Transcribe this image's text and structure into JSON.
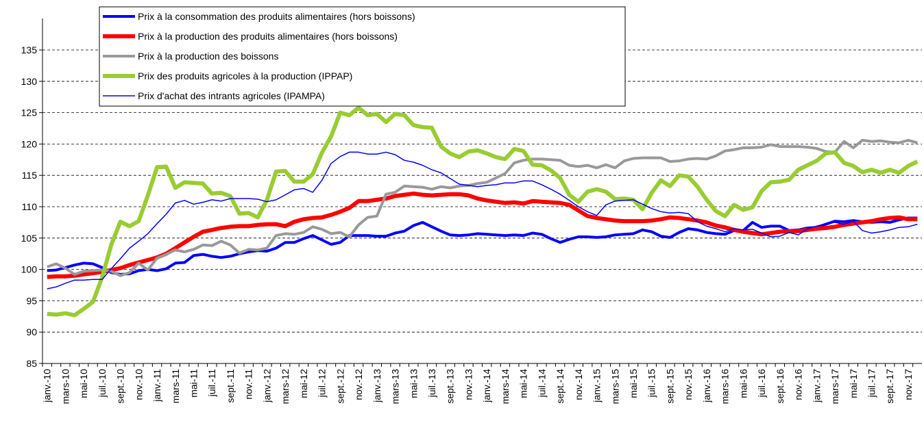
{
  "chart_data": {
    "type": "line",
    "categories": [
      "janv.-10",
      null,
      "mars-10",
      null,
      "mai-10",
      null,
      "juil.-10",
      null,
      "sept.-10",
      null,
      "nov.-10",
      null,
      "janv.-11",
      null,
      "mars-11",
      null,
      "mai-11",
      null,
      "juil.-11",
      null,
      "sept.-11",
      null,
      "nov.-11",
      null,
      "janv.-12",
      null,
      "mars-12",
      null,
      "mai-12",
      null,
      "juil.-12",
      null,
      "sept.-12",
      null,
      "nov.-12",
      null,
      "janv.-13",
      null,
      "mars-13",
      null,
      "mai-13",
      null,
      "juil.-13",
      null,
      "sept.-13",
      null,
      "nov.-13",
      null,
      "janv.-14",
      null,
      "mars-14",
      null,
      "mai-14",
      null,
      "juil.-14",
      null,
      "sept.-14",
      null,
      "nov.-14",
      null,
      "janv.-15",
      null,
      "mars-15",
      null,
      "mai-15",
      null,
      "juil.-15",
      null,
      "sept.-15",
      null,
      "nov.-15",
      null,
      "janv.-16",
      null,
      "mars-16",
      null,
      "mai-16",
      null,
      "juil.-16",
      null,
      "sept.-16",
      null,
      "nov.-16",
      null,
      "janv.-17",
      null,
      "mars-17",
      null,
      "mai-17",
      null,
      "juil.-17",
      null,
      "sept.-17",
      null,
      "nov.-17",
      null
    ],
    "series": [
      {
        "name": "Prix à la consommation des produits alimentaires (hors boissons)",
        "color": "#0000ff",
        "width": 4,
        "values": [
          99.8,
          99.9,
          100.3,
          100.7,
          101.0,
          100.9,
          100.3,
          99.5,
          99.2,
          99.3,
          99.8,
          100.0,
          99.8,
          100.1,
          101.0,
          101.1,
          102.2,
          102.4,
          102.1,
          101.9,
          102.1,
          102.5,
          102.8,
          103.0,
          102.9,
          103.4,
          104.3,
          104.3,
          104.9,
          105.4,
          104.7,
          104.0,
          104.3,
          105.4,
          105.4,
          105.4,
          105.3,
          105.3,
          105.8,
          106.1,
          107.0,
          107.5,
          106.8,
          106.1,
          105.5,
          105.4,
          105.5,
          105.7,
          105.6,
          105.5,
          105.4,
          105.5,
          105.4,
          105.8,
          105.6,
          104.9,
          104.3,
          104.8,
          105.2,
          105.2,
          105.1,
          105.2,
          105.5,
          105.6,
          105.7,
          106.3,
          106.0,
          105.3,
          105.1,
          105.9,
          106.5,
          106.3,
          105.9,
          105.7,
          105.6,
          106.2,
          106.2,
          107.5,
          106.7,
          106.9,
          106.9,
          106.2,
          106.3,
          106.6,
          106.7,
          107.2,
          107.7,
          107.6,
          107.8,
          107.6,
          107.5,
          107.6,
          107.5,
          107.9,
          108.2,
          108.2
        ]
      },
      {
        "name": "Prix à la production des produits alimentaires (hors boissons)",
        "color": "#ff0000",
        "width": 6,
        "values": [
          98.8,
          98.9,
          98.9,
          99.0,
          99.2,
          99.4,
          99.6,
          99.9,
          100.2,
          100.7,
          101.1,
          101.5,
          101.9,
          102.5,
          103.4,
          104.3,
          105.2,
          106.0,
          106.3,
          106.6,
          106.8,
          106.9,
          106.9,
          107.1,
          107.2,
          107.2,
          106.9,
          107.6,
          108.0,
          108.2,
          108.3,
          108.7,
          109.2,
          109.8,
          110.9,
          110.9,
          111.1,
          111.3,
          111.7,
          111.9,
          112.1,
          111.9,
          111.8,
          111.9,
          112.0,
          112.0,
          111.8,
          111.3,
          111.0,
          110.8,
          110.6,
          110.7,
          110.5,
          110.9,
          110.8,
          110.7,
          110.6,
          110.3,
          109.4,
          108.5,
          108.2,
          108.0,
          107.8,
          107.7,
          107.7,
          107.7,
          107.8,
          108.0,
          108.3,
          108.2,
          108.0,
          107.8,
          107.5,
          107.0,
          106.7,
          106.3,
          106.0,
          105.8,
          105.6,
          105.8,
          106.0,
          106.1,
          106.1,
          106.3,
          106.5,
          106.6,
          106.8,
          107.1,
          107.3,
          107.5,
          107.7,
          108.0,
          108.2,
          108.3,
          108.0,
          108.0
        ]
      },
      {
        "name": "Prix à la production des boissons",
        "color": "#999999",
        "width": 4,
        "values": [
          100.4,
          100.9,
          100.2,
          99.2,
          99.7,
          99.8,
          99.9,
          99.7,
          99.0,
          99.5,
          101.0,
          99.9,
          101.8,
          102.4,
          103.1,
          102.8,
          103.2,
          103.9,
          103.8,
          104.5,
          103.9,
          102.6,
          103.2,
          103.1,
          103.4,
          105.4,
          105.7,
          105.6,
          105.9,
          106.8,
          106.4,
          105.7,
          105.9,
          105.2,
          107.1,
          108.3,
          108.5,
          112.0,
          112.3,
          113.3,
          113.2,
          113.1,
          112.8,
          113.2,
          113.0,
          113.3,
          113.4,
          113.7,
          113.9,
          114.6,
          115.3,
          117.0,
          117.4,
          117.6,
          117.6,
          117.5,
          117.4,
          116.6,
          116.4,
          116.6,
          116.2,
          116.7,
          116.2,
          117.3,
          117.7,
          117.8,
          117.8,
          117.8,
          117.2,
          117.3,
          117.6,
          117.7,
          117.6,
          118.1,
          118.9,
          119.1,
          119.4,
          119.4,
          119.5,
          119.9,
          119.6,
          119.6,
          119.6,
          119.5,
          119.3,
          118.8,
          118.7,
          120.4,
          119.4,
          120.6,
          120.4,
          120.5,
          120.3,
          120.2,
          120.6,
          120.2
        ]
      },
      {
        "name": "Prix des produits agricoles à la production (IPPAP)",
        "color": "#99cc33",
        "width": 6,
        "values": [
          92.9,
          92.8,
          93.0,
          92.7,
          93.7,
          94.8,
          98.7,
          103.9,
          107.6,
          106.9,
          107.7,
          111.8,
          116.3,
          116.4,
          113.0,
          113.9,
          113.8,
          113.7,
          112.1,
          112.2,
          111.7,
          108.9,
          109.0,
          108.3,
          111.1,
          115.6,
          115.7,
          114.0,
          114.0,
          115.2,
          118.6,
          121.2,
          125.0,
          124.6,
          125.8,
          124.6,
          124.8,
          123.5,
          124.8,
          124.6,
          123.0,
          122.7,
          122.6,
          119.6,
          118.5,
          117.9,
          118.8,
          119.0,
          118.5,
          117.9,
          117.6,
          119.2,
          118.9,
          116.7,
          116.6,
          115.8,
          114.6,
          111.9,
          110.8,
          112.4,
          112.8,
          112.4,
          111.2,
          111.3,
          111.1,
          109.6,
          112.2,
          114.2,
          113.3,
          115.0,
          114.8,
          113.2,
          111.1,
          109.3,
          108.5,
          110.3,
          109.5,
          109.9,
          112.5,
          113.9,
          114.0,
          114.3,
          115.9,
          116.6,
          117.3,
          118.5,
          118.7,
          117.0,
          116.5,
          115.5,
          115.9,
          115.4,
          115.9,
          115.4,
          116.5,
          117.2
        ]
      },
      {
        "name": "Prix d'achat des intrants agricoles (IPAMPA)",
        "color": "#0000ff",
        "width": 1.5,
        "values": [
          96.9,
          97.2,
          97.8,
          98.3,
          98.3,
          98.4,
          98.4,
          100.1,
          101.7,
          103.4,
          104.5,
          105.7,
          107.3,
          108.8,
          110.6,
          111.0,
          110.4,
          110.7,
          111.1,
          110.9,
          111.3,
          111.3,
          111.3,
          111.2,
          110.8,
          111.1,
          111.9,
          112.7,
          112.9,
          112.3,
          114.2,
          116.9,
          118.0,
          118.7,
          118.7,
          118.4,
          118.4,
          118.7,
          118.3,
          117.4,
          117.1,
          116.6,
          115.9,
          115.4,
          114.5,
          113.6,
          113.4,
          113.2,
          113.4,
          113.5,
          113.8,
          113.8,
          114.1,
          114.1,
          113.5,
          112.8,
          112.0,
          111.0,
          110.0,
          109.2,
          108.6,
          110.3,
          110.9,
          111.0,
          111.1,
          110.4,
          109.7,
          109.2,
          109.0,
          109.1,
          108.9,
          107.6,
          106.9,
          106.5,
          106.0,
          106.5,
          106.3,
          106.4,
          105.8,
          105.2,
          105.3,
          105.9,
          105.5,
          106.5,
          106.9,
          107.3,
          107.5,
          107.2,
          107.7,
          106.2,
          105.8,
          106.0,
          106.3,
          106.7,
          106.8,
          107.2
        ]
      }
    ],
    "ylim": [
      85,
      135
    ],
    "yticks": [
      85,
      90,
      95,
      100,
      105,
      110,
      115,
      120,
      125,
      130,
      135
    ],
    "grid": true,
    "legend": "top-left"
  }
}
